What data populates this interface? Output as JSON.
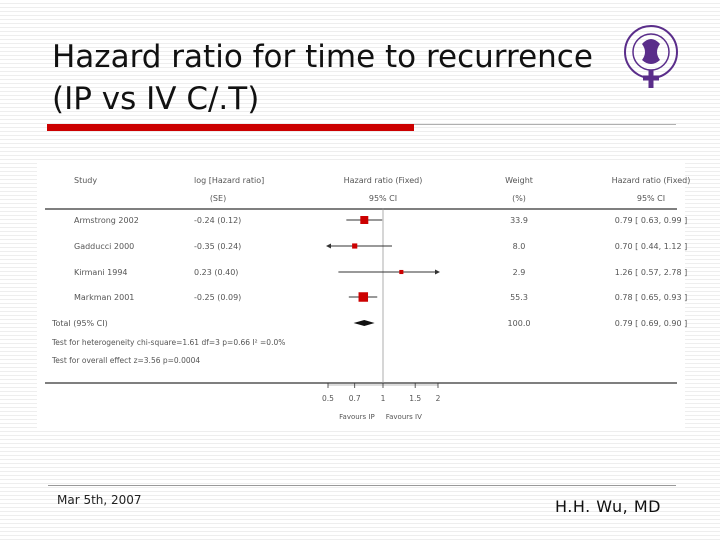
{
  "slide": {
    "title_line1": "Hazard ratio for time to recurrence",
    "title_line2": "(IP vs IV C/.T)",
    "footer_date": "Mar 5th, 2007",
    "footer_author": "H.H. Wu, MD",
    "accent_color": "#cc0000"
  },
  "chart_data": {
    "type": "forest",
    "scale": "log",
    "xlim": [
      0.5,
      2
    ],
    "xticks": [
      0.5,
      0.7,
      1,
      1.5,
      2
    ],
    "xtick_labels": [
      "0.5",
      "0.7",
      "1",
      "1.5",
      "2"
    ],
    "left_label": "Favours IP",
    "right_label": "Favours IV",
    "headers": {
      "study": "Study",
      "loghr": "log [Hazard ratio]",
      "loghr_sub": "(SE)",
      "plot": "Hazard ratio (Fixed)",
      "plot_sub": "95% CI",
      "weight": "Weight",
      "weight_sub": "(%)",
      "hr": "Hazard ratio (Fixed)",
      "hr_sub": "95% CI"
    },
    "studies": [
      {
        "study": "Armstrong 2002",
        "loghr_text": "-0.24 (0.12)",
        "weight_text": "33.9",
        "hr_text": "0.79 [ 0.63, 0.99 ]",
        "hr": 0.79,
        "lo": 0.63,
        "hi": 0.99,
        "weight": 33.9
      },
      {
        "study": "Gadducci 2000",
        "loghr_text": "-0.35 (0.24)",
        "weight_text": "8.0",
        "hr_text": "0.70 [ 0.44, 1.12 ]",
        "hr": 0.7,
        "lo": 0.44,
        "hi": 1.12,
        "weight": 8.0
      },
      {
        "study": "Kirmani 1994",
        "loghr_text": "0.23 (0.40)",
        "weight_text": "2.9",
        "hr_text": "1.26 [ 0.57, 2.78 ]",
        "hr": 1.26,
        "lo": 0.57,
        "hi": 2.78,
        "weight": 2.9
      },
      {
        "study": "Markman 2001",
        "loghr_text": "-0.25 (0.09)",
        "weight_text": "55.3",
        "hr_text": "0.78 [ 0.65, 0.93 ]",
        "hr": 0.78,
        "lo": 0.65,
        "hi": 0.93,
        "weight": 55.3
      }
    ],
    "total": {
      "study": "Total (95% CI)",
      "weight_text": "100.0",
      "hr_text": "0.79 [ 0.69, 0.90 ]",
      "hr": 0.79,
      "lo": 0.69,
      "hi": 0.9
    },
    "heterogeneity": "Test for heterogeneity chi-square=1.61 df=3 p=0.66 I² =0.0%",
    "overall_effect": "Test for overall effect z=3.56   p=0.0004"
  }
}
